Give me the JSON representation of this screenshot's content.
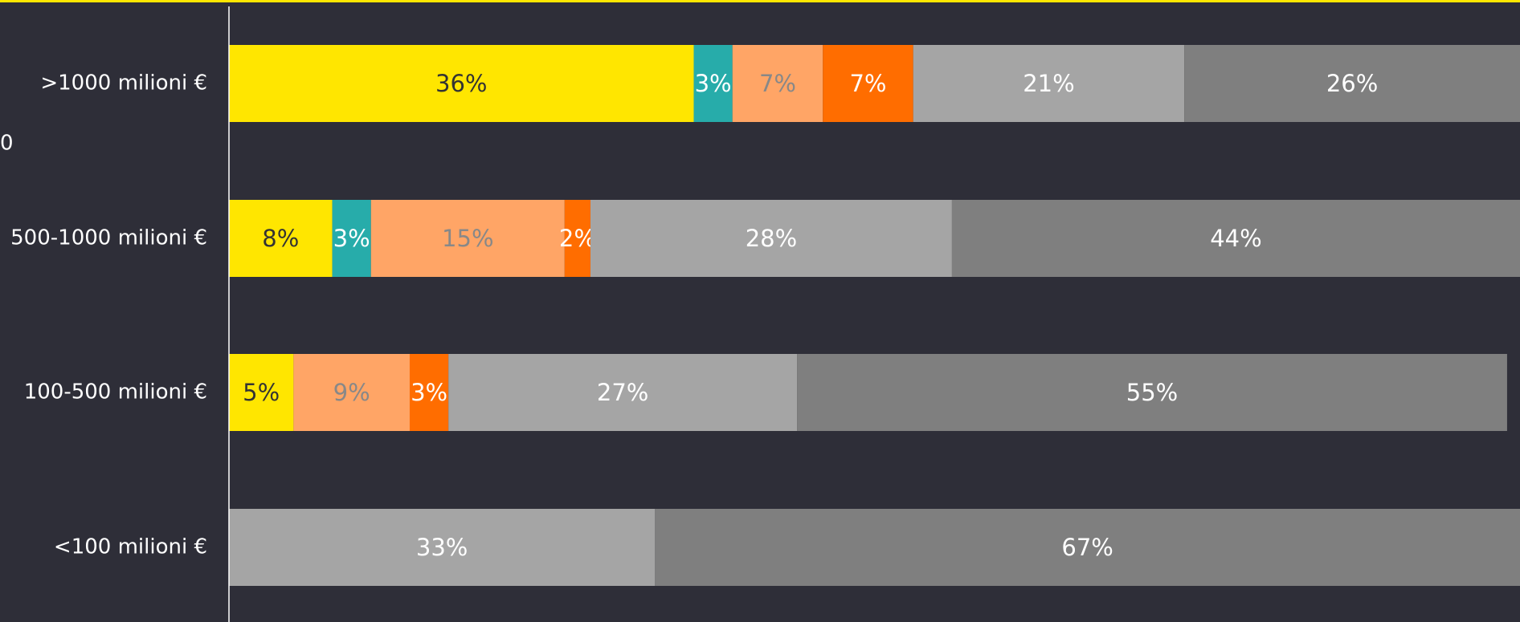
{
  "chart_data": {
    "type": "stacked-barh",
    "categories": [
      ">1000 milioni €",
      "500-1000 milioni €",
      "100-500 milioni €",
      "<100 milioni €"
    ],
    "annotation": "0",
    "xlim": [
      0,
      100
    ],
    "series": [
      {
        "color": "#ffe600",
        "label_color": "#333333",
        "values": [
          36,
          8,
          5,
          null
        ],
        "value_labels": [
          "36%",
          "8%",
          "5%",
          null
        ]
      },
      {
        "color": "#27acaa",
        "label_color": "#ffffff",
        "values": [
          3,
          3,
          null,
          null
        ],
        "value_labels": [
          "3%",
          "3%",
          null,
          null
        ]
      },
      {
        "color": "#ffa566",
        "label_color": "#888888",
        "values": [
          7,
          15,
          9,
          null
        ],
        "value_labels": [
          "7%",
          "15%",
          "9%",
          null
        ]
      },
      {
        "color": "#ff6d00",
        "label_color": "#ffffff",
        "values": [
          7,
          2,
          3,
          null
        ],
        "value_labels": [
          "7%",
          "2%",
          "3%",
          null
        ]
      },
      {
        "color": "#a5a5a5",
        "label_color": "#ffffff",
        "values": [
          21,
          28,
          27,
          33
        ],
        "value_labels": [
          "21%",
          "28%",
          "27%",
          "33%"
        ]
      },
      {
        "color": "#7f7f7f",
        "label_color": "#ffffff",
        "values": [
          26,
          44,
          55,
          67
        ],
        "value_labels": [
          "26%",
          "44%",
          "55%",
          "67%"
        ]
      }
    ]
  }
}
